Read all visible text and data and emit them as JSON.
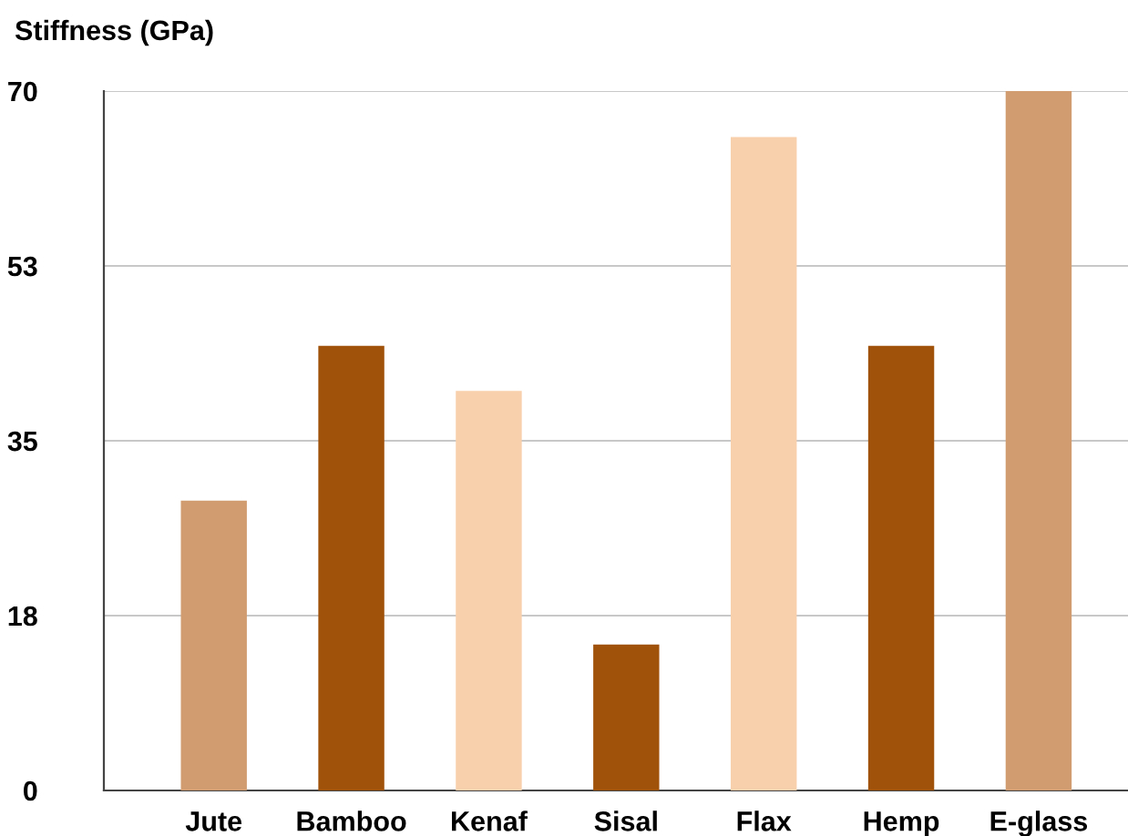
{
  "chart_data": {
    "type": "bar",
    "ylabel": "Stiffness (GPa)",
    "categories": [
      "Jute",
      "Bamboo",
      "Kenaf",
      "Sisal",
      "Flax",
      "Hemp",
      "E-glass"
    ],
    "values": [
      29,
      44.5,
      40,
      14.6,
      65.4,
      44.5,
      70
    ],
    "colors": [
      "#d09c70",
      "#a0520a",
      "#f9d0ac",
      "#a0520a",
      "#f9d0ac",
      "#a0520a",
      "#d09c70"
    ],
    "ylim": [
      0,
      70
    ],
    "yticks": [
      0,
      {
        "value": 17.5,
        "label": "18"
      },
      35,
      {
        "value": 52.5,
        "label": "53"
      },
      70
    ],
    "grid": "y",
    "legend": false
  }
}
